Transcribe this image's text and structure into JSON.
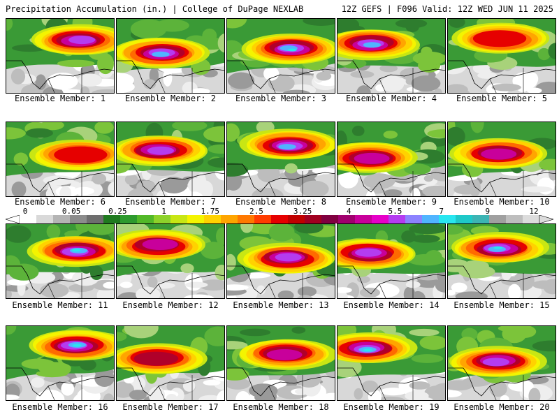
{
  "header": {
    "left": "Precipitation Accumulation (in.) | College of DuPage NEXLAB",
    "right": "12Z GEFS | F096 Valid: 12Z WED JUN 11 2025"
  },
  "colorbar": {
    "labels": [
      "0",
      "0.05",
      "0.25",
      "1",
      "1.75",
      "2.5",
      "3.25",
      "4",
      "5.5",
      "7",
      "9",
      "12"
    ],
    "colors": [
      "#ffffff",
      "#d9d9d9",
      "#b4b4b4",
      "#8c8c8c",
      "#6e6e6e",
      "#1f7a1f",
      "#2e9a2e",
      "#52b828",
      "#8dd22a",
      "#c8e614",
      "#f4f400",
      "#ffd200",
      "#ffa500",
      "#ff7800",
      "#ff3c00",
      "#e60000",
      "#c00000",
      "#a00020",
      "#800040",
      "#a0006e",
      "#c8009b",
      "#e600c8",
      "#b43cf0",
      "#8c82ff",
      "#50b4ff",
      "#28e6f0",
      "#1ec8c8",
      "#3cb4b4",
      "#a0a0a0",
      "#bebebe",
      "#dcdcdc"
    ]
  },
  "members": [
    {
      "label": "Ensemble Member: 1",
      "intensity": 0.75
    },
    {
      "label": "Ensemble Member: 2",
      "intensity": 0.85
    },
    {
      "label": "Ensemble Member: 3",
      "intensity": 0.95
    },
    {
      "label": "Ensemble Member: 4",
      "intensity": 0.9
    },
    {
      "label": "Ensemble Member: 5",
      "intensity": 0.5
    },
    {
      "label": "Ensemble Member: 6",
      "intensity": 0.45
    },
    {
      "label": "Ensemble Member: 7",
      "intensity": 0.75
    },
    {
      "label": "Ensemble Member: 8",
      "intensity": 0.9
    },
    {
      "label": "Ensemble Member: 9",
      "intensity": 0.7
    },
    {
      "label": "Ensemble Member: 10",
      "intensity": 0.7
    },
    {
      "label": "Ensemble Member: 11",
      "intensity": 0.95
    },
    {
      "label": "Ensemble Member: 12",
      "intensity": 0.7
    },
    {
      "label": "Ensemble Member: 13",
      "intensity": 0.8
    },
    {
      "label": "Ensemble Member: 14",
      "intensity": 0.75
    },
    {
      "label": "Ensemble Member: 15",
      "intensity": 0.95
    },
    {
      "label": "Ensemble Member: 16",
      "intensity": 0.95
    },
    {
      "label": "Ensemble Member: 17",
      "intensity": 0.6
    },
    {
      "label": "Ensemble Member: 18",
      "intensity": 0.65
    },
    {
      "label": "Ensemble Member: 19",
      "intensity": 0.95
    },
    {
      "label": "Ensemble Member: 20",
      "intensity": 0.75
    }
  ]
}
